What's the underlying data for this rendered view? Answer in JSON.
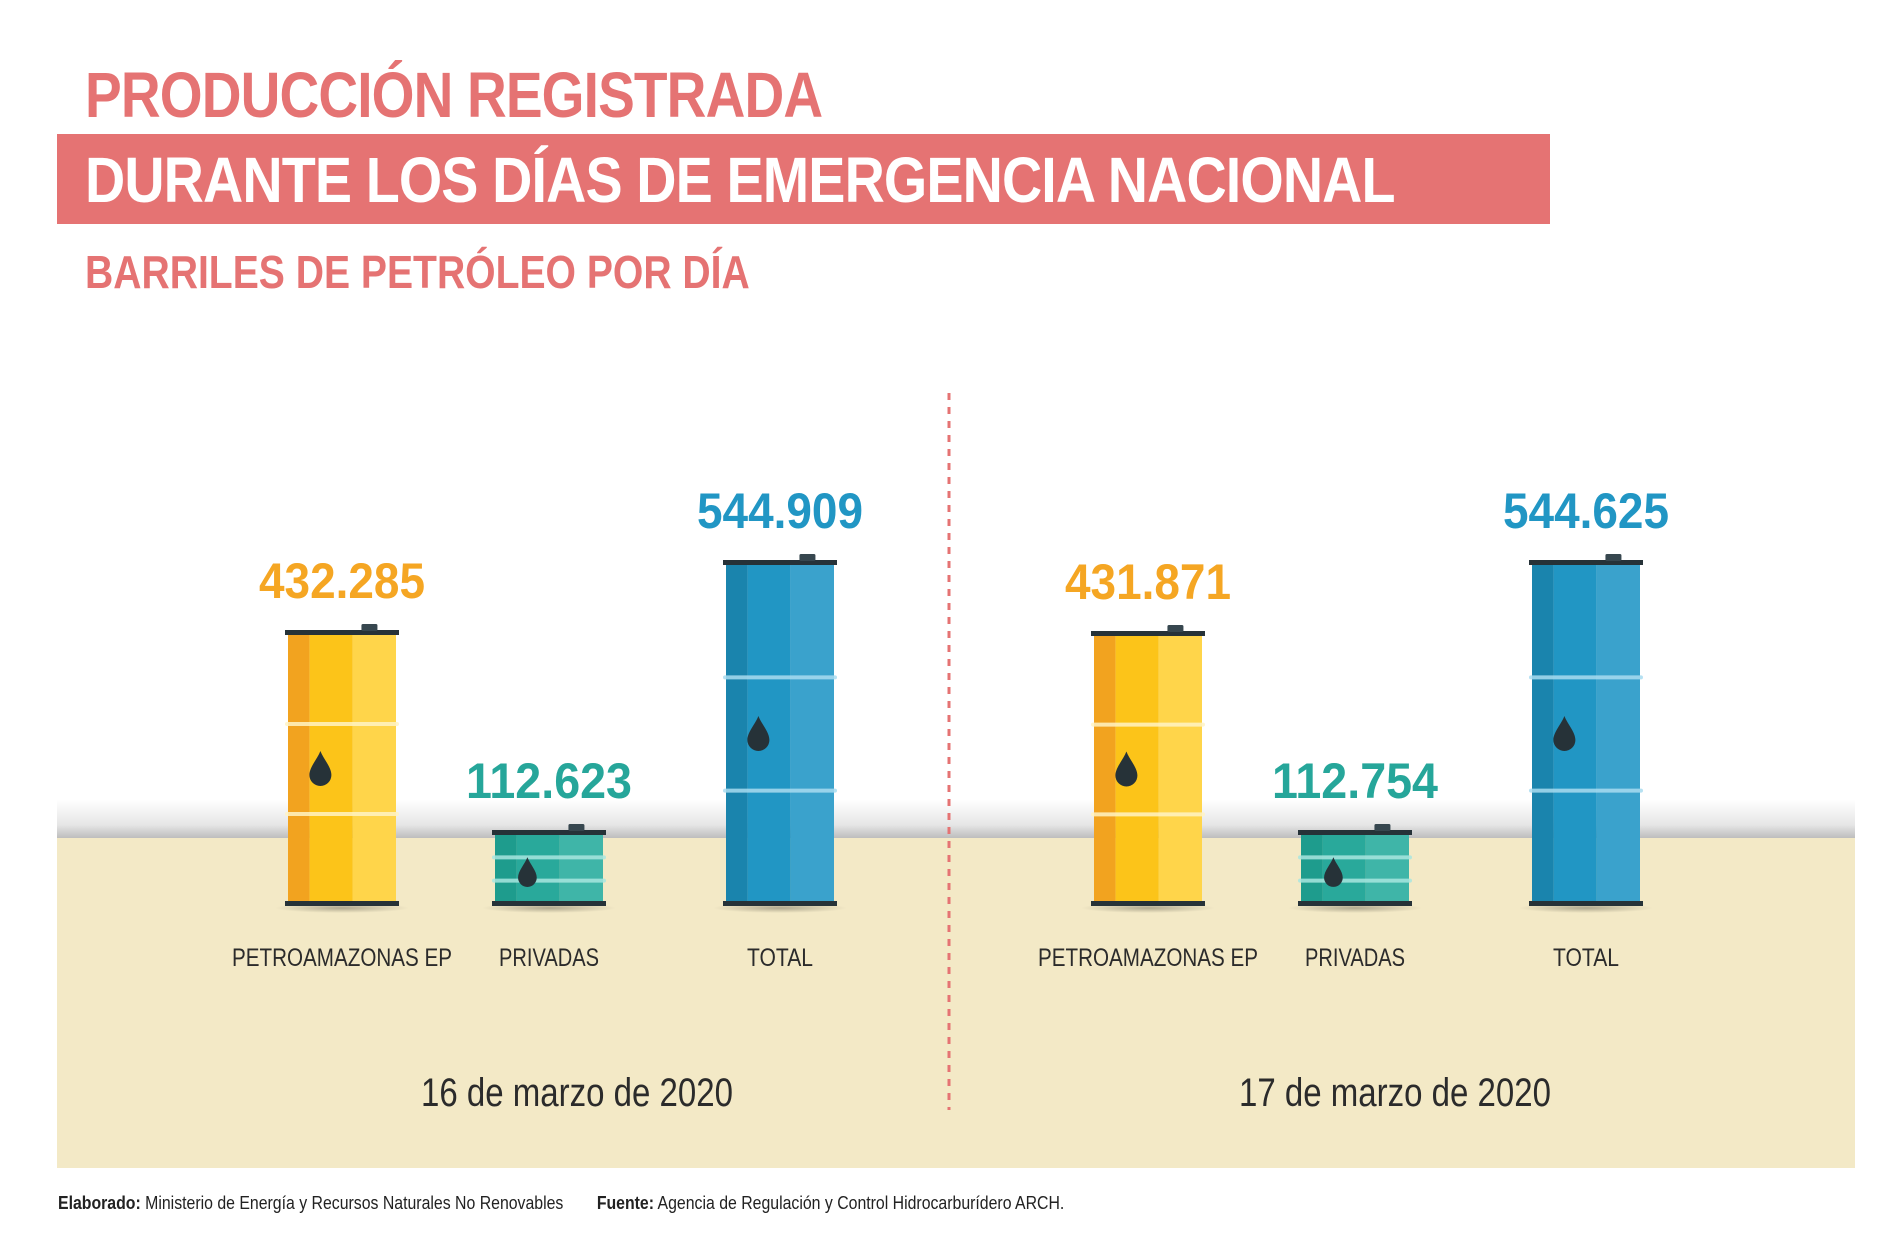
{
  "header": {
    "title_line1": "PRODUCCIÓN REGISTRADA",
    "title_line2": "DURANTE LOS DÍAS DE EMERGENCIA NACIONAL",
    "subtitle": "BARRILES DE PETRÓLEO POR DÍA"
  },
  "colors": {
    "title": "#e57373",
    "petroamazonas": "#f5a623",
    "privadas": "#26a69a",
    "total": "#2196c4",
    "floor": "#f3e9c6"
  },
  "chart_data": [
    {
      "type": "bar",
      "title": "16 de marzo de 2020",
      "categories": [
        "PETROAMAZONAS EP",
        "PRIVADAS",
        "TOTAL"
      ],
      "values": [
        432285,
        112623,
        544909
      ],
      "value_labels": [
        "432.285",
        "112.623",
        "544.909"
      ],
      "ylabel": "Barriles de petróleo por día",
      "icon": "oil-barrel-icon"
    },
    {
      "type": "bar",
      "title": "17 de marzo de 2020",
      "categories": [
        "PETROAMAZONAS EP",
        "PRIVADAS",
        "TOTAL"
      ],
      "values": [
        431871,
        112754,
        544625
      ],
      "value_labels": [
        "431.871",
        "112.754",
        "544.625"
      ],
      "ylabel": "Barriles de petróleo por día",
      "icon": "oil-barrel-icon"
    }
  ],
  "footer": {
    "elaborado_label": "Elaborado:",
    "elaborado_text": "Ministerio de Energía y Recursos Naturales No Renovables",
    "fuente_label": "Fuente:",
    "fuente_text": "Agencia de Regulación y Control Hidrocarburídero ARCH."
  }
}
